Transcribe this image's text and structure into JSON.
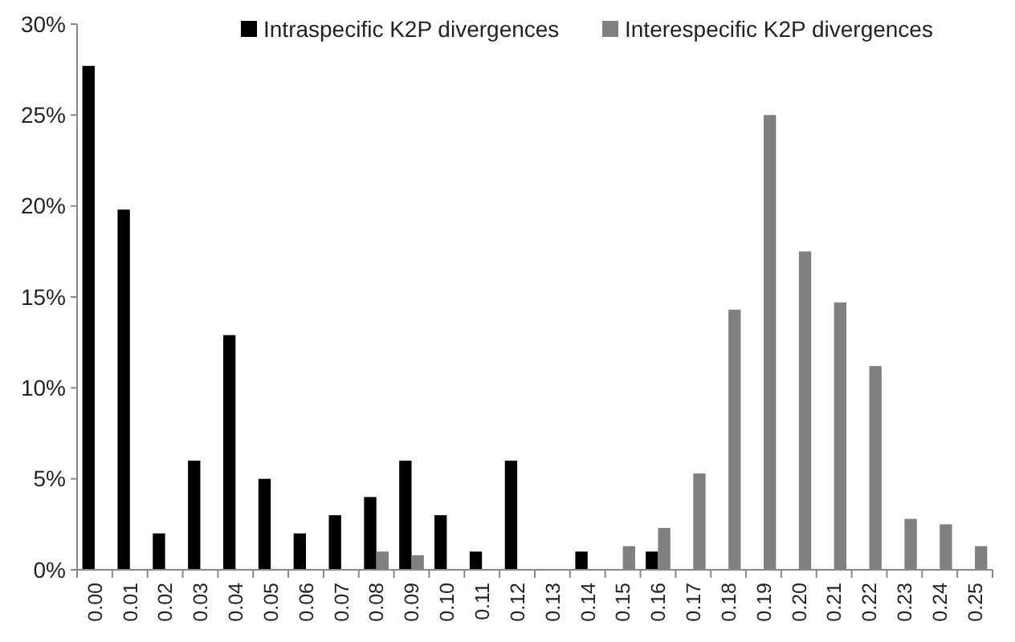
{
  "chart_data": {
    "type": "bar",
    "categories": [
      "0.00",
      "0.01",
      "0.02",
      "0.03",
      "0.04",
      "0.05",
      "0.06",
      "0.07",
      "0.08",
      "0.09",
      "0.10",
      "0.11",
      "0.12",
      "0.13",
      "0.14",
      "0.15",
      "0.16",
      "0.17",
      "0.18",
      "0.19",
      "0.20",
      "0.21",
      "0.22",
      "0.23",
      "0.24",
      "0.25"
    ],
    "series": [
      {
        "name": "Intraspecific K2P divergences",
        "color": "#000000",
        "values": [
          27.7,
          19.8,
          2,
          6,
          12.9,
          5,
          2,
          3,
          4,
          6,
          3,
          1,
          6,
          0,
          1,
          0,
          1,
          0,
          0,
          0,
          0,
          0,
          0,
          0,
          0,
          0
        ]
      },
      {
        "name": "Interespecific K2P divergences",
        "color": "#808080",
        "values": [
          0,
          0,
          0,
          0,
          0,
          0,
          0,
          0,
          1,
          0.8,
          0,
          0,
          0,
          0,
          0,
          1.3,
          2.3,
          5.3,
          14.3,
          25,
          17.5,
          14.7,
          11.2,
          2.8,
          2.5,
          1.3
        ]
      }
    ],
    "ylim": [
      0,
      30
    ],
    "yticks": [
      {
        "value": 0,
        "label": "0%"
      },
      {
        "value": 5,
        "label": "5%"
      },
      {
        "value": 10,
        "label": "10%"
      },
      {
        "value": 15,
        "label": "15%"
      },
      {
        "value": 20,
        "label": "20%"
      },
      {
        "value": 25,
        "label": "25%"
      },
      {
        "value": 30,
        "label": "30%"
      }
    ],
    "grid": false,
    "legend": "top"
  }
}
